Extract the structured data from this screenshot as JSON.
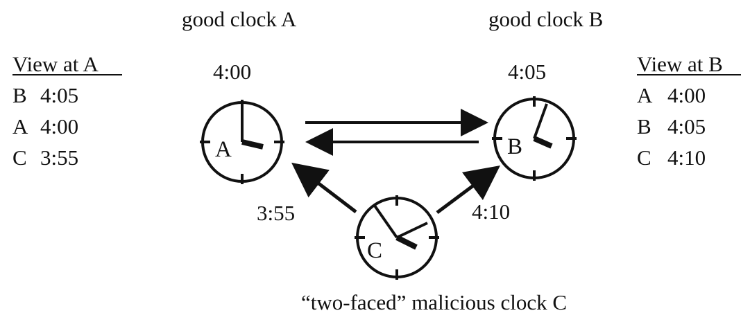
{
  "titles": {
    "good_clock_a": "good clock A",
    "good_clock_b": "good clock B",
    "malicious_clock_c": "“two-faced”  malicious clock C"
  },
  "view_a": {
    "heading": "View at A",
    "rows": [
      {
        "clock": "B",
        "time": "4:05"
      },
      {
        "clock": "A",
        "time": "4:00"
      },
      {
        "clock": "C",
        "time": "3:55"
      }
    ]
  },
  "view_b": {
    "heading": "View at B",
    "rows": [
      {
        "clock": "A",
        "time": "4:00"
      },
      {
        "clock": "B",
        "time": "4:05"
      },
      {
        "clock": "C",
        "time": "4:10"
      }
    ]
  },
  "clocks": {
    "a": {
      "letter": "A",
      "time": "4:00"
    },
    "b": {
      "letter": "B",
      "time": "4:05"
    },
    "c": {
      "letter": "C"
    }
  },
  "arrow_labels": {
    "c_to_a": "3:55",
    "c_to_b": "4:10"
  }
}
